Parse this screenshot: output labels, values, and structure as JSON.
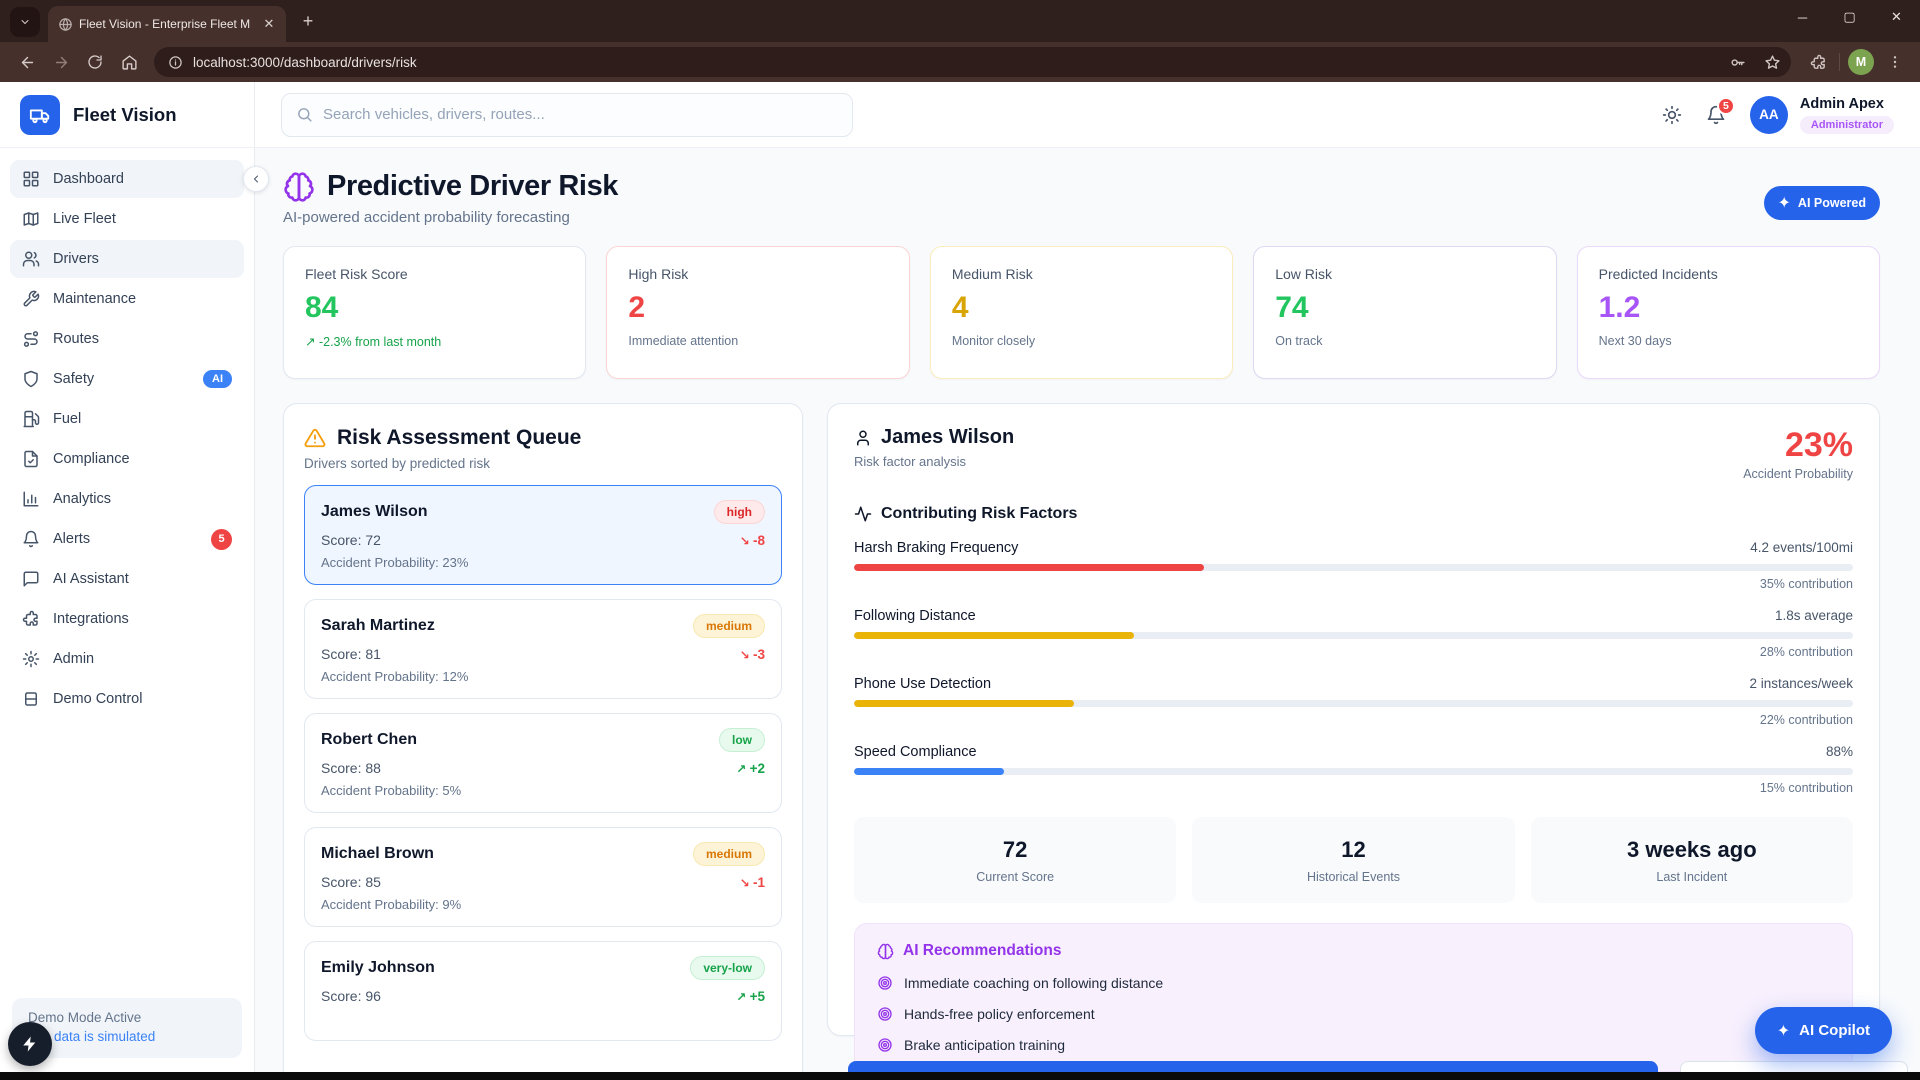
{
  "browser": {
    "tab_title": "Fleet Vision - Enterprise Fleet M",
    "url": "localhost:3000/dashboard/drivers/risk",
    "profile_initial": "M",
    "window": {
      "minimize": "─",
      "maximize": "▢",
      "close": "✕"
    },
    "new_tab": "+",
    "tab_close": "✕"
  },
  "sidebar": {
    "brand": "Fleet Vision",
    "items": [
      {
        "label": "Dashboard"
      },
      {
        "label": "Live Fleet"
      },
      {
        "label": "Drivers"
      },
      {
        "label": "Maintenance"
      },
      {
        "label": "Routes"
      },
      {
        "label": "Safety",
        "badge": "AI"
      },
      {
        "label": "Fuel"
      },
      {
        "label": "Compliance"
      },
      {
        "label": "Analytics"
      },
      {
        "label": "Alerts",
        "badge": "5"
      },
      {
        "label": "AI Assistant"
      },
      {
        "label": "Integrations"
      },
      {
        "label": "Admin"
      },
      {
        "label": "Demo Control"
      }
    ],
    "demo_mode": {
      "title": "Demo Mode Active",
      "subtitle": "data is simulated"
    }
  },
  "header": {
    "search_placeholder": "Search vehicles, drivers, routes...",
    "notification_count": "5",
    "user": {
      "initials": "AA",
      "name": "Admin Apex",
      "role": "Administrator"
    }
  },
  "page": {
    "title": "Predictive Driver Risk",
    "subtitle": "AI-powered accident probability forecasting",
    "ai_badge": "AI Powered"
  },
  "stats": [
    {
      "label": "Fleet Risk Score",
      "value": "84",
      "caption": "-2.3% from last month"
    },
    {
      "label": "High Risk",
      "value": "2",
      "caption": "Immediate attention"
    },
    {
      "label": "Medium Risk",
      "value": "4",
      "caption": "Monitor closely"
    },
    {
      "label": "Low Risk",
      "value": "74",
      "caption": "On track"
    },
    {
      "label": "Predicted Incidents",
      "value": "1.2",
      "caption": "Next 30 days"
    }
  ],
  "queue": {
    "title": "Risk Assessment Queue",
    "subtitle": "Drivers sorted by predicted risk",
    "drivers": [
      {
        "name": "James Wilson",
        "risk": "high",
        "score": "Score: 72",
        "trend": "-8",
        "probability": "Accident Probability: 23%"
      },
      {
        "name": "Sarah Martinez",
        "risk": "medium",
        "score": "Score: 81",
        "trend": "-3",
        "probability": "Accident Probability: 12%"
      },
      {
        "name": "Robert Chen",
        "risk": "low",
        "score": "Score: 88",
        "trend": "+2",
        "probability": "Accident Probability: 5%"
      },
      {
        "name": "Michael Brown",
        "risk": "medium",
        "score": "Score: 85",
        "trend": "-1",
        "probability": "Accident Probability: 9%"
      },
      {
        "name": "Emily Johnson",
        "risk": "very-low",
        "score": "Score: 96",
        "trend": "+5",
        "probability": ""
      }
    ]
  },
  "detail": {
    "name": "James Wilson",
    "subtitle": "Risk factor analysis",
    "probability": "23%",
    "probability_label": "Accident Probability",
    "factors_title": "Contributing Risk Factors",
    "factors": [
      {
        "name": "Harsh Braking Frequency",
        "value": "4.2 events/100mi",
        "contribution": "35% contribution",
        "pct": 35,
        "color": "#ef4444"
      },
      {
        "name": "Following Distance",
        "value": "1.8s average",
        "contribution": "28% contribution",
        "pct": 28,
        "color": "#eab308"
      },
      {
        "name": "Phone Use Detection",
        "value": "2 instances/week",
        "contribution": "22% contribution",
        "pct": 22,
        "color": "#eab308"
      },
      {
        "name": "Speed Compliance",
        "value": "88%",
        "contribution": "15% contribution",
        "pct": 15,
        "color": "#3b82f6"
      }
    ],
    "summary": [
      {
        "value": "72",
        "label": "Current Score"
      },
      {
        "value": "12",
        "label": "Historical Events"
      },
      {
        "value": "3 weeks ago",
        "label": "Last Incident"
      }
    ],
    "recommendations": {
      "title": "AI Recommendations",
      "items": [
        "Immediate coaching on following distance",
        "Hands-free policy enforcement",
        "Brake anticipation training"
      ]
    }
  },
  "copilot_label": "AI Copilot",
  "colors": {
    "accent": "#2563eb",
    "danger": "#ef4444",
    "success": "#22c55e",
    "warning": "#d97706",
    "purple": "#9333ea"
  }
}
